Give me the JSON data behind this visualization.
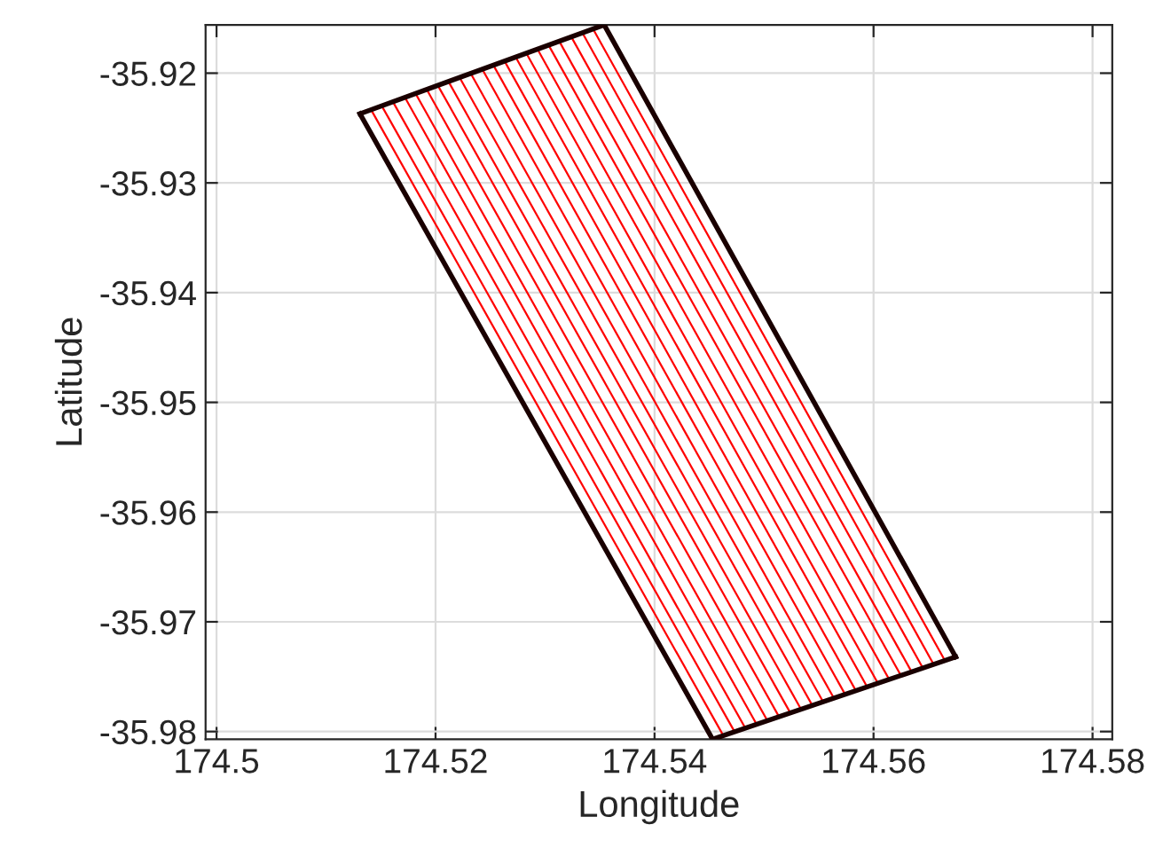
{
  "chart_data": {
    "type": "line",
    "xlabel": "Longitude",
    "ylabel": "Latitude",
    "xlim": [
      174.499,
      174.5818
    ],
    "ylim": [
      -35.9807,
      -35.9156
    ],
    "xticks": [
      174.5,
      174.52,
      174.54,
      174.56,
      174.58
    ],
    "yticks": [
      -35.98,
      -35.97,
      -35.96,
      -35.95,
      -35.94,
      -35.93,
      -35.92
    ],
    "grid": true,
    "marker": "none",
    "line_style": "solid",
    "series": [
      {
        "color": "#ff0000",
        "x": [
          174.5141,
          174.5463
        ],
        "values": [
          -35.9233,
          -35.9804
        ]
      },
      {
        "color": "#ff0000",
        "x": [
          174.5151,
          174.5473
        ],
        "values": [
          -35.923,
          -35.98
        ]
      },
      {
        "color": "#ff0000",
        "x": [
          174.5161,
          174.5483
        ],
        "values": [
          -35.9226,
          -35.9797
        ]
      },
      {
        "color": "#ff0000",
        "x": [
          174.5172,
          174.5493
        ],
        "values": [
          -35.9222,
          -35.9793
        ]
      },
      {
        "color": "#ff0000",
        "x": [
          174.5182,
          174.5503
        ],
        "values": [
          -35.9219,
          -35.979
        ]
      },
      {
        "color": "#ff0000",
        "x": [
          174.5192,
          174.5514
        ],
        "values": [
          -35.9215,
          -35.9787
        ]
      },
      {
        "color": "#ff0000",
        "x": [
          174.5202,
          174.5524
        ],
        "values": [
          -35.9211,
          -35.9783
        ]
      },
      {
        "color": "#ff0000",
        "x": [
          174.5212,
          174.5534
        ],
        "values": [
          -35.9208,
          -35.978
        ]
      },
      {
        "color": "#ff0000",
        "x": [
          174.5222,
          174.5544
        ],
        "values": [
          -35.9204,
          -35.9776
        ]
      },
      {
        "color": "#ff0000",
        "x": [
          174.5232,
          174.5554
        ],
        "values": [
          -35.92,
          -35.9773
        ]
      },
      {
        "color": "#ff0000",
        "x": [
          174.5243,
          174.5564
        ],
        "values": [
          -35.9197,
          -35.977
        ]
      },
      {
        "color": "#ff0000",
        "x": [
          174.5253,
          174.5574
        ],
        "values": [
          -35.9193,
          -35.9766
        ]
      },
      {
        "color": "#ff0000",
        "x": [
          174.5263,
          174.5584
        ],
        "values": [
          -35.9189,
          -35.9763
        ]
      },
      {
        "color": "#ff0000",
        "x": [
          174.5273,
          174.5594
        ],
        "values": [
          -35.9185,
          -35.9759
        ]
      },
      {
        "color": "#ff0000",
        "x": [
          174.5283,
          174.5604
        ],
        "values": [
          -35.9182,
          -35.9756
        ]
      },
      {
        "color": "#ff0000",
        "x": [
          174.5293,
          174.5614
        ],
        "values": [
          -35.9178,
          -35.9752
        ]
      },
      {
        "color": "#ff0000",
        "x": [
          174.5303,
          174.5625
        ],
        "values": [
          -35.9174,
          -35.9749
        ]
      },
      {
        "color": "#ff0000",
        "x": [
          174.5313,
          174.5635
        ],
        "values": [
          -35.9171,
          -35.9746
        ]
      },
      {
        "color": "#ff0000",
        "x": [
          174.5324,
          174.5645
        ],
        "values": [
          -35.9167,
          -35.9742
        ]
      },
      {
        "color": "#ff0000",
        "x": [
          174.5334,
          174.5655
        ],
        "values": [
          -35.9163,
          -35.9739
        ]
      },
      {
        "color": "#ff0000",
        "x": [
          174.5344,
          174.5665
        ],
        "values": [
          -35.916,
          -35.9735
        ]
      },
      {
        "color": "#1a0000",
        "x": [
          174.5131,
          174.5354
        ],
        "values": [
          -35.9237,
          -35.9156
        ]
      },
      {
        "color": "#1a0000",
        "x": [
          174.5354,
          174.5675
        ],
        "values": [
          -35.9156,
          -35.9732
        ]
      },
      {
        "color": "#1a0000",
        "x": [
          174.5453,
          174.5675
        ],
        "values": [
          -35.9807,
          -35.9732
        ]
      },
      {
        "color": "#1a0000",
        "x": [
          174.5131,
          174.5453
        ],
        "values": [
          -35.9237,
          -35.9807
        ]
      }
    ]
  }
}
